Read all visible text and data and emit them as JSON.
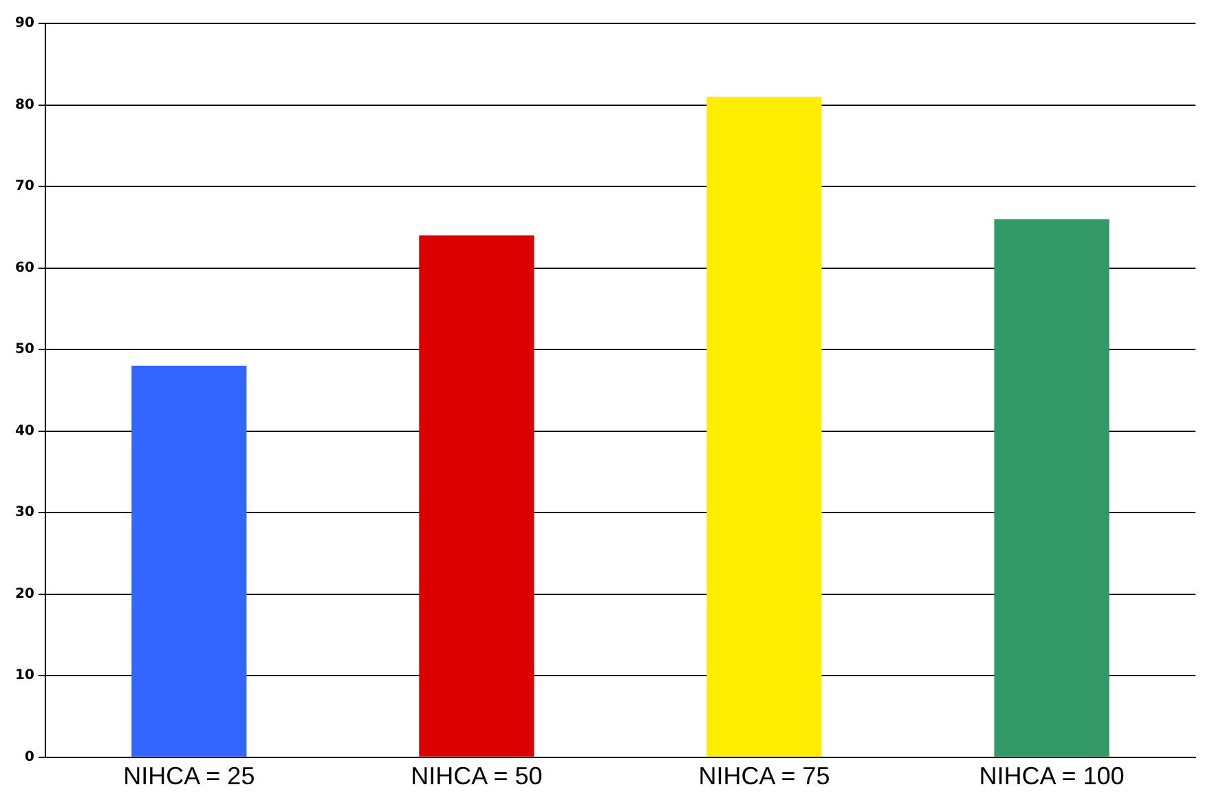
{
  "chart_data": {
    "type": "bar",
    "categories": [
      "NIHCA = 25",
      "NIHCA = 50",
      "NIHCA = 75",
      "NIHCA = 100"
    ],
    "values": [
      48,
      64,
      81,
      66
    ],
    "colors": [
      "#3366ff",
      "#dd0000",
      "#ffee00",
      "#339966"
    ],
    "ylim": [
      0,
      90
    ],
    "yticks": [
      0,
      10,
      20,
      30,
      40,
      50,
      60,
      70,
      80,
      90
    ],
    "grid": "y",
    "legend": false
  }
}
